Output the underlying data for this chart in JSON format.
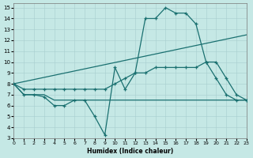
{
  "xlabel": "Humidex (Indice chaleur)",
  "bg_color": "#c5e8e5",
  "line_color": "#1a7070",
  "xlim": [
    0,
    23
  ],
  "ylim": [
    3,
    15.4
  ],
  "xticks": [
    0,
    1,
    2,
    3,
    4,
    5,
    6,
    7,
    8,
    9,
    10,
    11,
    12,
    13,
    14,
    15,
    16,
    17,
    18,
    19,
    20,
    21,
    22,
    23
  ],
  "yticks": [
    3,
    4,
    5,
    6,
    7,
    8,
    9,
    10,
    11,
    12,
    13,
    14,
    15
  ],
  "series": [
    {
      "x": [
        0,
        1,
        2,
        3,
        4,
        5,
        6,
        7,
        8,
        9,
        10,
        11,
        12,
        13,
        14,
        15,
        16,
        17,
        18,
        19,
        20,
        21,
        22,
        23
      ],
      "y": [
        8,
        7,
        7,
        6.8,
        6,
        6,
        6.5,
        6.5,
        5,
        3.3,
        9.5,
        7.5,
        9,
        14,
        14,
        15,
        14.5,
        14.5,
        13.5,
        10,
        8.5,
        7,
        6.5,
        6.5
      ],
      "marker": "+"
    },
    {
      "x": [
        0,
        23
      ],
      "y": [
        8,
        12.5
      ],
      "marker": null
    },
    {
      "x": [
        0,
        1,
        2,
        3,
        4,
        5,
        6,
        7,
        8,
        9,
        10,
        11,
        12,
        13,
        14,
        15,
        16,
        17,
        18,
        19,
        20,
        21,
        22,
        23
      ],
      "y": [
        8,
        7.5,
        7.5,
        7.5,
        7.5,
        7.5,
        7.5,
        7.5,
        7.5,
        7.5,
        8,
        8.5,
        9,
        9,
        9.5,
        9.5,
        9.5,
        9.5,
        9.5,
        10,
        10,
        8.5,
        7,
        6.5
      ],
      "marker": "+"
    },
    {
      "x": [
        0,
        1,
        2,
        3,
        4,
        5,
        6,
        7,
        8,
        9,
        10,
        11,
        12,
        13,
        14,
        15,
        16,
        17,
        18,
        19,
        20,
        21,
        22,
        23
      ],
      "y": [
        8,
        7,
        7,
        7,
        6.5,
        6.5,
        6.5,
        6.5,
        6.5,
        6.5,
        6.5,
        6.5,
        6.5,
        6.5,
        6.5,
        6.5,
        6.5,
        6.5,
        6.5,
        6.5,
        6.5,
        6.5,
        6.5,
        6.5
      ],
      "marker": null
    }
  ]
}
